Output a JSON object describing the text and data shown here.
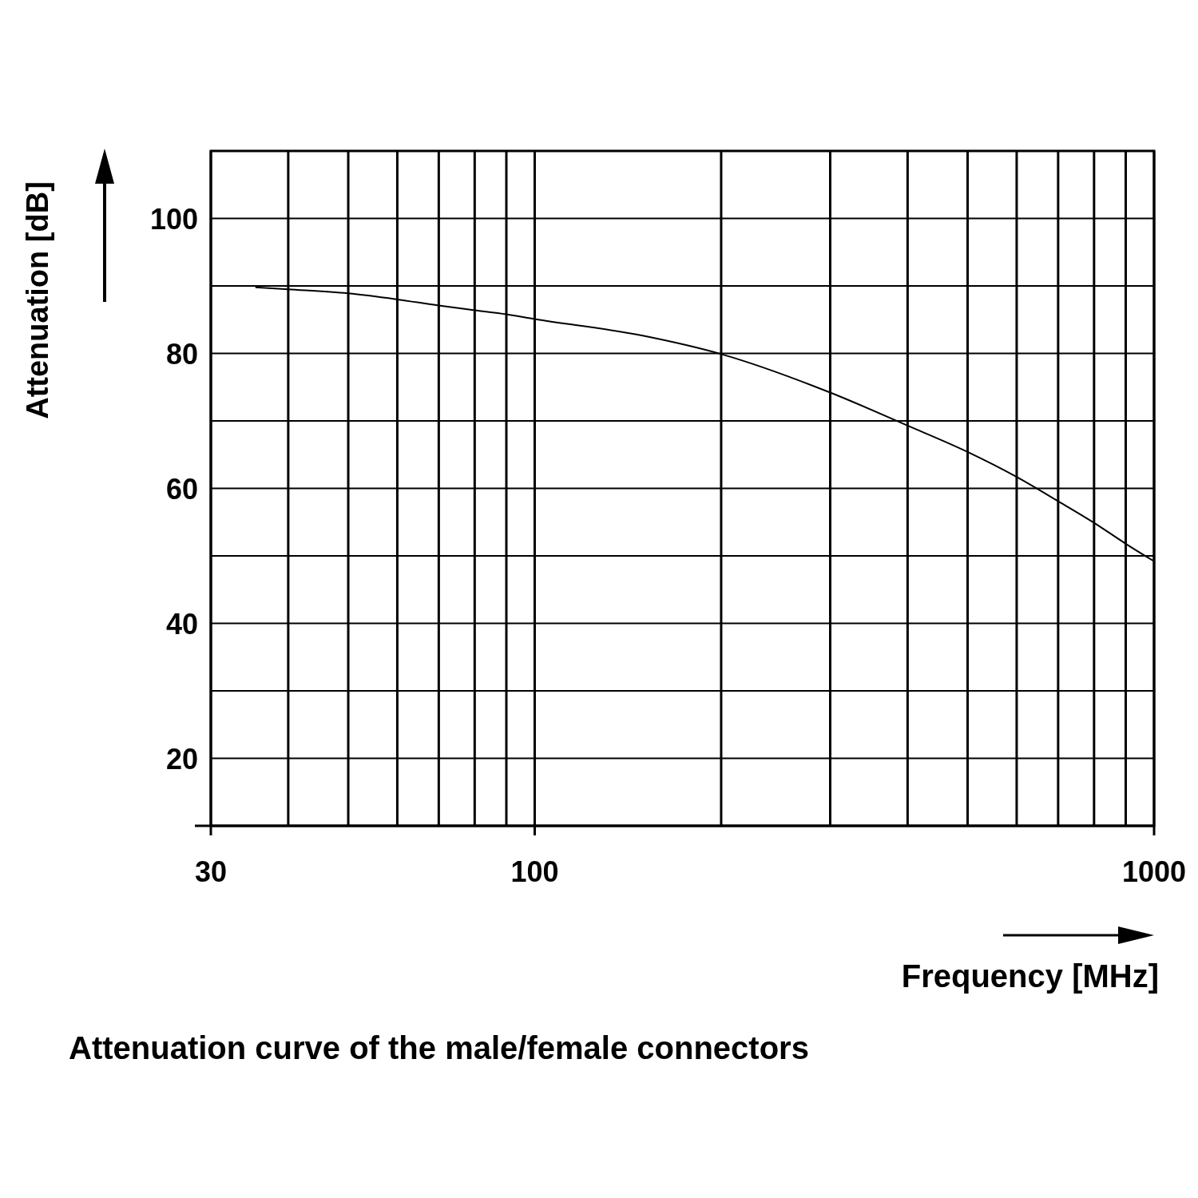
{
  "chart_data": {
    "type": "line",
    "title": "Attenuation curve of the male/female connectors",
    "xlabel": "Frequency [MHz]",
    "ylabel": "Attenuation [dB]",
    "log": "x",
    "grid": true,
    "marker": "none",
    "line_style": "solid",
    "xlim": [
      30,
      1000
    ],
    "xticks": [
      30,
      {
        "value": 40,
        "label": null
      },
      {
        "value": 50,
        "label": null
      },
      {
        "value": 60,
        "label": null
      },
      {
        "value": 70,
        "label": null
      },
      {
        "value": 80,
        "label": null
      },
      {
        "value": 90,
        "label": null
      },
      100,
      {
        "value": 200,
        "label": null
      },
      {
        "value": 300,
        "label": null
      },
      {
        "value": 400,
        "label": null
      },
      {
        "value": 500,
        "label": null
      },
      {
        "value": 600,
        "label": null
      },
      {
        "value": 700,
        "label": null
      },
      {
        "value": 800,
        "label": null
      },
      {
        "value": 900,
        "label": null
      },
      1000
    ],
    "ylim": [
      10,
      110
    ],
    "yticks": [
      20,
      {
        "value": 30,
        "label": null
      },
      40,
      {
        "value": 50,
        "label": null
      },
      60,
      {
        "value": 70,
        "label": null
      },
      80,
      {
        "value": 90,
        "label": null
      },
      100
    ],
    "series": [
      {
        "color": "#000000",
        "x": [
          35.4,
          40,
          50,
          60,
          70,
          80,
          90,
          100,
          150,
          200,
          300,
          400,
          500,
          600,
          700,
          800,
          900,
          1000
        ],
        "values": [
          89.8,
          89.5,
          88.9,
          88.0,
          87.1,
          86.4,
          85.8,
          85.1,
          82.6,
          79.9,
          74.2,
          69.3,
          65.4,
          61.7,
          58.1,
          54.9,
          51.8,
          49.2
        ]
      }
    ]
  }
}
